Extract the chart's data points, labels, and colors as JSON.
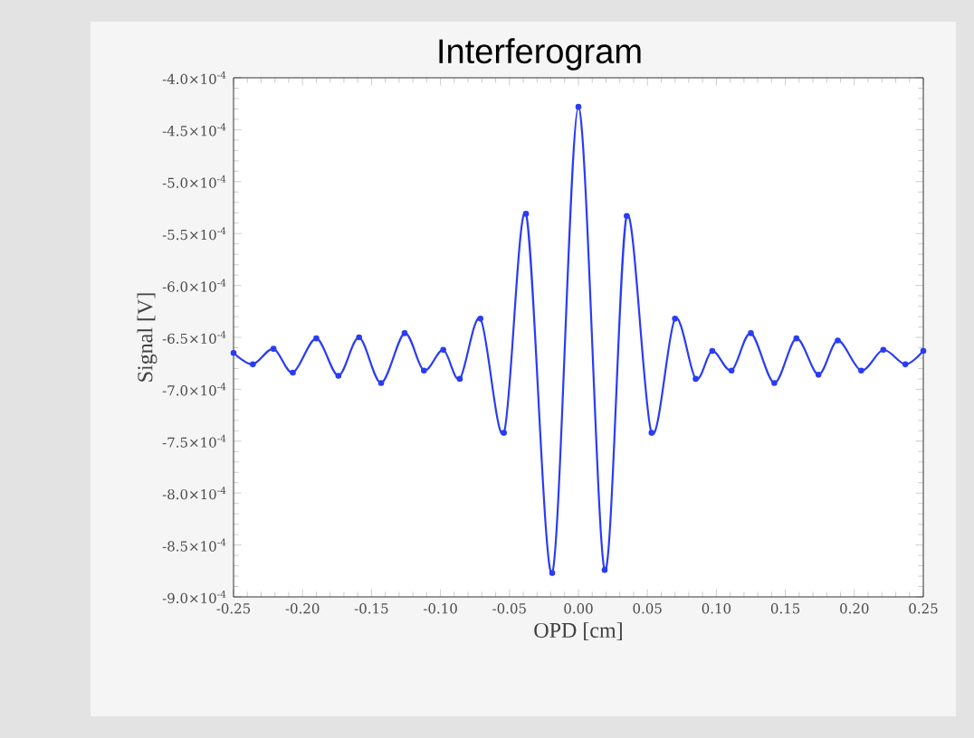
{
  "chart_data": {
    "type": "line",
    "title": "Interferogram",
    "xlabel": "OPD [cm]",
    "ylabel": "Signal [V]",
    "x": [
      -0.25,
      -0.236,
      -0.221,
      -0.207,
      -0.19,
      -0.174,
      -0.159,
      -0.143,
      -0.126,
      -0.112,
      -0.098,
      -0.086,
      -0.071,
      -0.054,
      -0.038,
      -0.019,
      0.0,
      0.019,
      0.035,
      0.053,
      0.07,
      0.085,
      0.097,
      0.111,
      0.125,
      0.142,
      0.158,
      0.174,
      0.188,
      0.205,
      0.221,
      0.237,
      0.25
    ],
    "series": [
      {
        "color": "#2a3cf5",
        "values": [
          -0.000665,
          -0.000676,
          -0.000661,
          -0.000684,
          -0.000651,
          -0.000687,
          -0.00065,
          -0.000694,
          -0.000646,
          -0.000682,
          -0.000662,
          -0.00069,
          -0.000632,
          -0.000742,
          -0.000531,
          -0.000877,
          -0.000428,
          -0.000874,
          -0.000533,
          -0.000742,
          -0.000632,
          -0.00069,
          -0.000663,
          -0.000682,
          -0.000646,
          -0.000694,
          -0.000651,
          -0.000686,
          -0.000653,
          -0.000682,
          -0.000662,
          -0.000676,
          -0.000663
        ]
      }
    ],
    "xlim": [
      -0.25,
      0.25
    ],
    "ylim": [
      -0.0009,
      -0.0004
    ],
    "xticks": [
      {
        "value": -0.25,
        "label": "-0.25"
      },
      {
        "value": -0.2,
        "label": "-0.20"
      },
      {
        "value": -0.15,
        "label": "-0.15"
      },
      {
        "value": -0.1,
        "label": "-0.10"
      },
      {
        "value": -0.05,
        "label": "-0.05"
      },
      {
        "value": 0,
        "label": "0.00"
      },
      {
        "value": 0.05,
        "label": "0.05"
      },
      {
        "value": 0.1,
        "label": "0.10"
      },
      {
        "value": 0.15,
        "label": "0.15"
      },
      {
        "value": 0.2,
        "label": "0.20"
      },
      {
        "value": 0.25,
        "label": "0.25"
      }
    ],
    "yticks": [
      {
        "value": -0.0009,
        "label": "-9.0×10$^{-4}$"
      },
      {
        "value": -0.00085,
        "label": "-8.5×10$^{-4}$"
      },
      {
        "value": -0.0008,
        "label": "-8.0×10$^{-4}$"
      },
      {
        "value": -0.00075,
        "label": "-7.5×10$^{-4}$"
      },
      {
        "value": -0.0007,
        "label": "-7.0×10$^{-4}$"
      },
      {
        "value": -0.00065,
        "label": "-6.5×10$^{-4}$"
      },
      {
        "value": -0.0006,
        "label": "-6.0×10$^{-4}$"
      },
      {
        "value": -0.00055,
        "label": "-5.5×10$^{-4}$"
      },
      {
        "value": -0.0005,
        "label": "-5.0×10$^{-4}$"
      },
      {
        "value": -0.00045,
        "label": "-4.5×10$^{-4}$"
      },
      {
        "value": -0.0004,
        "label": "-4.0×10$^{-4}$"
      }
    ],
    "marker": "circle",
    "line_style": "solid"
  }
}
